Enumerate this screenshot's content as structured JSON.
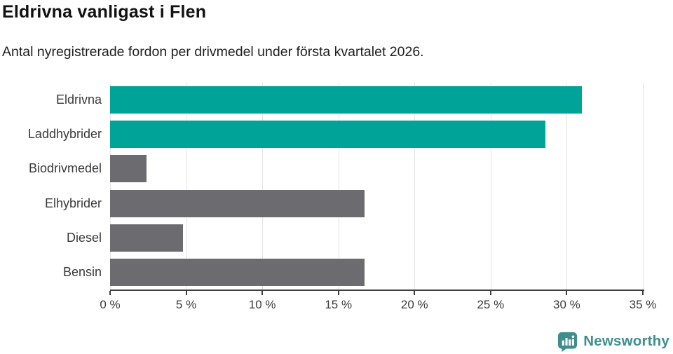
{
  "header": {
    "title": "Eldrivna vanligast i Flen",
    "subtitle": "Antal nyregistrerade fordon per drivmedel under första kvartalet 2026."
  },
  "chart_data": {
    "type": "bar",
    "orientation": "horizontal",
    "title": "Eldrivna vanligast i Flen",
    "subtitle": "Antal nyregistrerade fordon per drivmedel under första kvartalet 2026.",
    "categories": [
      "Eldrivna",
      "Laddhybrider",
      "Biodrivmedel",
      "Elhybrider",
      "Diesel",
      "Bensin"
    ],
    "values": [
      31.0,
      28.6,
      2.4,
      16.7,
      4.8,
      16.7
    ],
    "unit": "%",
    "xlim": [
      0,
      35
    ],
    "x_ticks": [
      0,
      5,
      10,
      15,
      20,
      25,
      30,
      35
    ],
    "x_tick_suffix": " %",
    "grid": true,
    "legend": "none",
    "bar_colors": [
      "#00a398",
      "#00a398",
      "#6c6b70",
      "#6c6b70",
      "#6c6b70",
      "#6c6b70"
    ]
  },
  "colors": {
    "highlight": "#00a398",
    "neutral": "#6c6b70",
    "axis": "#3f3f3f",
    "grid": "#e4e4e4",
    "title": "#111111",
    "text": "#3a3a3a",
    "brand": "#3f8e8f"
  },
  "branding": {
    "label": "Newsworthy",
    "logo_icon": "newsworthy-speech-bubble-bar-chart"
  }
}
